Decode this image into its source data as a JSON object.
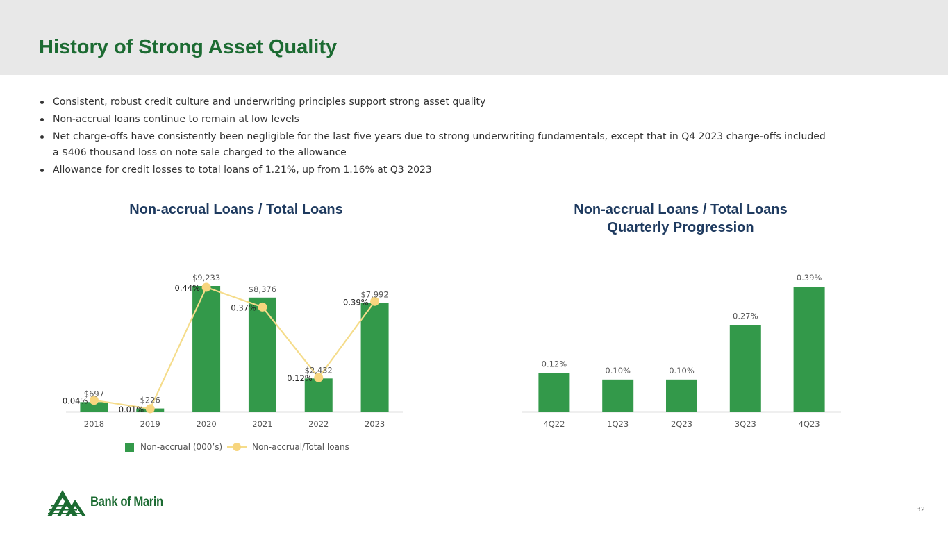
{
  "header": {
    "title": "History of Strong Asset Quality"
  },
  "bullets": [
    "Consistent, robust credit culture and underwriting principles support strong asset quality",
    "Non-accrual loans continue to remain at low levels",
    "Net charge-offs have consistently been negligible for the last five years due to strong underwriting fundamentals, except that in Q4 2023 charge-offs included a $406 thousand loss on note sale charged to the allowance",
    "Allowance for credit losses to total loans of 1.21%, up from 1.16% at Q3 2023"
  ],
  "legend": {
    "bar_label": "Non-accrual (000’s)",
    "line_label": "Non-accrual/Total loans"
  },
  "colors": {
    "bar": "#33994a",
    "line": "#f5dc8a",
    "marker": "#f7d57e",
    "title": "#1c6b32",
    "chart_title": "#1e3a5f"
  },
  "logo": {
    "text": "Bank of Marin",
    "icon": "mountain-logo-icon"
  },
  "footer": {
    "page_number": "32"
  },
  "chart_data": [
    {
      "type": "bar",
      "title_lines": [
        "Non-accrual Loans / Total Loans"
      ],
      "categories": [
        "2018",
        "2019",
        "2020",
        "2021",
        "2022",
        "2023"
      ],
      "series": [
        {
          "name": "Non-accrual (000’s)",
          "type": "bar",
          "values": [
            697,
            226,
            9233,
            8376,
            2432,
            7992
          ],
          "labels": [
            "$697",
            "$226",
            "$9,233",
            "$8,376",
            "$2,432",
            "$7,992"
          ]
        },
        {
          "name": "Non-accrual/Total loans",
          "type": "line",
          "values": [
            0.04,
            0.01,
            0.44,
            0.37,
            0.12,
            0.39
          ],
          "labels": [
            "0.04%",
            "0.01%",
            "0.44%",
            "0.37%",
            "0.12%",
            "0.39%"
          ]
        }
      ],
      "ylim": [
        0,
        9233
      ],
      "y2lim": [
        0,
        0.72
      ],
      "legend_position": "bottom",
      "grid": false
    },
    {
      "type": "bar",
      "title_lines": [
        "Non-accrual Loans / Total Loans",
        "Quarterly Progression"
      ],
      "categories": [
        "4Q22",
        "1Q23",
        "2Q23",
        "3Q23",
        "4Q23"
      ],
      "values": [
        0.12,
        0.1,
        0.1,
        0.27,
        0.39
      ],
      "labels": [
        "0.12%",
        "0.10%",
        "0.10%",
        "0.27%",
        "0.39%"
      ],
      "ylim": [
        0,
        0.39
      ],
      "grid": false
    }
  ]
}
